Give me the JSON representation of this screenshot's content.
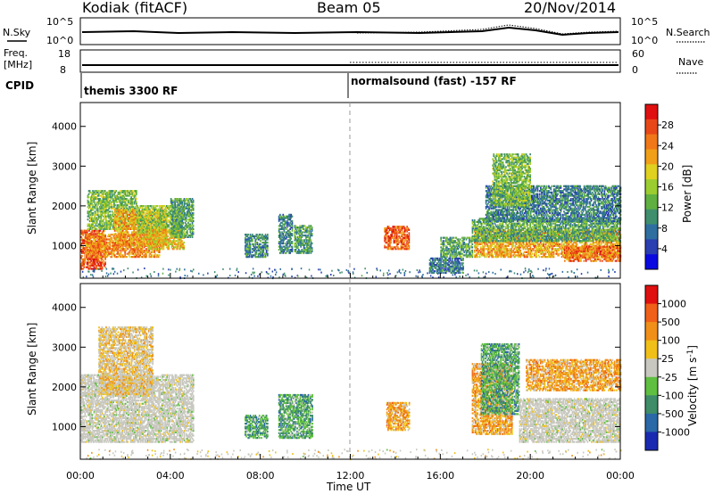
{
  "header": {
    "station": "Kodiak (fitACF)",
    "beam": "Beam 05",
    "date": "20/Nov/2014"
  },
  "top_panels": {
    "nsky_label": "N.Sky",
    "nsky_ticks": [
      "10^5",
      "10^0"
    ],
    "nsearch_label": "N.Search",
    "nsearch_ticks": [
      "10^5",
      "10^0"
    ],
    "freq_label_line1": "Freq.",
    "freq_label_line2": "[MHz]",
    "freq_ticks": [
      "18",
      "8"
    ],
    "nave_label": "Nave",
    "nave_ticks": [
      "60",
      "0"
    ],
    "cpid_label": "CPID",
    "cpid_segments": [
      {
        "label": "themis 3300 RF",
        "start_hour": 0
      },
      {
        "label": "normalsound (fast) -157 RF",
        "start_hour": 12
      }
    ]
  },
  "chart_data": [
    {
      "type": "heatmap",
      "name": "power",
      "ylabel": "Slant Range [km]",
      "xlabel": "Time UT",
      "xlim": [
        0,
        24
      ],
      "ylim": [
        180,
        4600
      ],
      "yticks": [
        1000,
        2000,
        3000,
        4000
      ],
      "colorbar": {
        "label": "Power [dB]",
        "ticks": [
          4,
          8,
          12,
          16,
          20,
          24,
          28
        ],
        "range": [
          0,
          32
        ],
        "colors": [
          "#0a0ae0",
          "#2a3fb0",
          "#2e6fa0",
          "#3f8f6e",
          "#5fb040",
          "#9ccd30",
          "#e0d020",
          "#f0a018",
          "#f07818",
          "#e84818",
          "#e01010"
        ]
      },
      "regions": [
        {
          "t": [
            0.0,
            1.1
          ],
          "r": [
            400,
            1400
          ],
          "level": 27
        },
        {
          "t": [
            0.2,
            3.5
          ],
          "r": [
            700,
            1300
          ],
          "level": 24
        },
        {
          "t": [
            0.3,
            2.5
          ],
          "r": [
            1400,
            2400
          ],
          "level": 14
        },
        {
          "t": [
            1.5,
            3.8
          ],
          "r": [
            1000,
            1900
          ],
          "level": 22
        },
        {
          "t": [
            2.5,
            4.5
          ],
          "r": [
            1300,
            2000
          ],
          "level": 15
        },
        {
          "t": [
            3.0,
            4.6
          ],
          "r": [
            900,
            1400
          ],
          "level": 20
        },
        {
          "t": [
            4.0,
            5.0
          ],
          "r": [
            1200,
            2200
          ],
          "level": 12
        },
        {
          "t": [
            7.3,
            8.3
          ],
          "r": [
            700,
            1300
          ],
          "level": 10
        },
        {
          "t": [
            8.8,
            9.4
          ],
          "r": [
            800,
            1800
          ],
          "level": 9
        },
        {
          "t": [
            9.5,
            10.3
          ],
          "r": [
            800,
            1500
          ],
          "level": 11
        },
        {
          "t": [
            13.5,
            14.6
          ],
          "r": [
            900,
            1500
          ],
          "level": 26
        },
        {
          "t": [
            15.5,
            17.0
          ],
          "r": [
            300,
            700
          ],
          "level": 8
        },
        {
          "t": [
            16.0,
            17.4
          ],
          "r": [
            700,
            1200
          ],
          "level": 12
        },
        {
          "t": [
            17.5,
            24.0
          ],
          "r": [
            700,
            1400
          ],
          "level": 22
        },
        {
          "t": [
            17.4,
            24.0
          ],
          "r": [
            1100,
            1700
          ],
          "level": 12
        },
        {
          "t": [
            18.0,
            24.0
          ],
          "r": [
            1600,
            2500
          ],
          "level": 9
        },
        {
          "t": [
            18.3,
            20.0
          ],
          "r": [
            2000,
            3300
          ],
          "level": 14
        },
        {
          "t": [
            21.5,
            24.0
          ],
          "r": [
            600,
            1000
          ],
          "level": 25
        }
      ]
    },
    {
      "type": "heatmap",
      "name": "velocity",
      "ylabel": "Slant Range [km]",
      "xlabel": "Time UT",
      "xlim": [
        0,
        24
      ],
      "ylim": [
        180,
        4600
      ],
      "yticks": [
        1000,
        2000,
        3000,
        4000
      ],
      "xticks": [
        "00:00",
        "04:00",
        "08:00",
        "12:00",
        "16:00",
        "20:00",
        "00:00"
      ],
      "colorbar": {
        "label": "Velocity [m s^-1]",
        "ticks": [
          "1000",
          "500",
          "100",
          "25",
          "-25",
          "-100",
          "-500",
          "-1000"
        ],
        "colors": [
          "#1a2ab0",
          "#2a68a8",
          "#3e8c68",
          "#5fbf40",
          "#c8c8c0",
          "#f0c018",
          "#f09018",
          "#f06018",
          "#e01010"
        ]
      },
      "regions": [
        {
          "t": [
            0.0,
            5.0
          ],
          "r": [
            600,
            2300
          ],
          "class": "ground"
        },
        {
          "t": [
            0.8,
            3.2
          ],
          "r": [
            1800,
            3500
          ],
          "class": "slow-neg"
        },
        {
          "t": [
            7.3,
            8.3
          ],
          "r": [
            700,
            1300
          ],
          "class": "pos-green"
        },
        {
          "t": [
            8.8,
            10.3
          ],
          "r": [
            700,
            1800
          ],
          "class": "pos-green"
        },
        {
          "t": [
            13.6,
            14.6
          ],
          "r": [
            900,
            1600
          ],
          "class": "neg-orange"
        },
        {
          "t": [
            17.4,
            19.2
          ],
          "r": [
            800,
            2600
          ],
          "class": "neg-orange"
        },
        {
          "t": [
            17.8,
            19.5
          ],
          "r": [
            1300,
            3100
          ],
          "class": "pos-green"
        },
        {
          "t": [
            19.5,
            24.0
          ],
          "r": [
            600,
            1700
          ],
          "class": "ground"
        },
        {
          "t": [
            19.8,
            24.0
          ],
          "r": [
            1900,
            2700
          ],
          "class": "neg-orange"
        }
      ]
    }
  ]
}
